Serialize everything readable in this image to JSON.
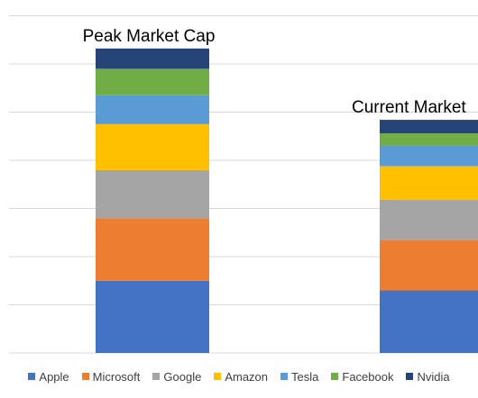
{
  "chart_data": {
    "type": "bar",
    "stacked": true,
    "categories": [
      "Peak Market Cap",
      "Current Market"
    ],
    "category_labels_position": "above-bars",
    "ylim": [
      0,
      7
    ],
    "gridlines": [
      0,
      1,
      2,
      3,
      4,
      5,
      6,
      7
    ],
    "grid": true,
    "legend_position": "bottom",
    "series": [
      {
        "name": "Apple",
        "color": "#4472C4",
        "values": [
          1.5,
          1.3
        ]
      },
      {
        "name": "Microsoft",
        "color": "#ED7D31",
        "values": [
          1.3,
          1.05
        ]
      },
      {
        "name": "Google",
        "color": "#A5A5A5",
        "values": [
          1.0,
          0.83
        ]
      },
      {
        "name": "Amazon",
        "color": "#FFC000",
        "values": [
          0.95,
          0.7
        ]
      },
      {
        "name": "Tesla",
        "color": "#5B9BD5",
        "values": [
          0.6,
          0.43
        ]
      },
      {
        "name": "Facebook",
        "color": "#70AD47",
        "values": [
          0.55,
          0.25
        ]
      },
      {
        "name": "Nvidia",
        "color": "#264478",
        "values": [
          0.42,
          0.28
        ]
      }
    ]
  }
}
